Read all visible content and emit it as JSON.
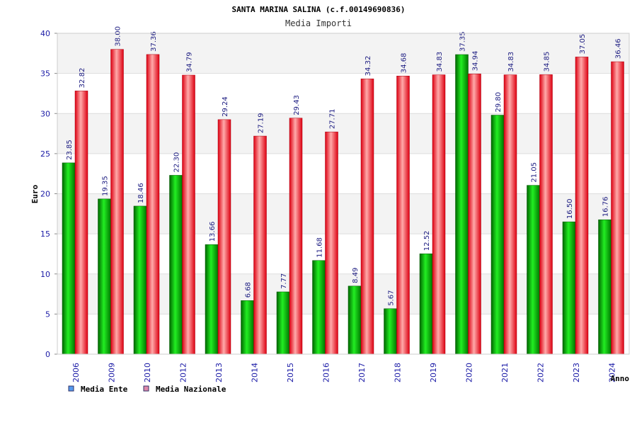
{
  "chart_data": {
    "type": "bar",
    "title": "SANTA MARINA SALINA (c.f.00149690836)",
    "subtitle": "Media Importi",
    "xlabel": "Anno",
    "ylabel": "Euro",
    "ylim": [
      0,
      40
    ],
    "yticks": [
      0,
      5,
      10,
      15,
      20,
      25,
      30,
      35,
      40
    ],
    "grid": true,
    "legend": "bottom-left",
    "categories": [
      "2006",
      "2009",
      "2010",
      "2012",
      "2013",
      "2014",
      "2015",
      "2016",
      "2017",
      "2018",
      "2019",
      "2020",
      "2021",
      "2022",
      "2023",
      "2024"
    ],
    "series": [
      {
        "name": "Media Ente",
        "legend_color": "#5599ee",
        "bar_color": "#00aa00",
        "values": [
          23.85,
          19.35,
          18.46,
          22.3,
          13.66,
          6.68,
          7.77,
          11.68,
          8.49,
          5.67,
          12.52,
          37.35,
          29.8,
          21.05,
          16.5,
          16.76
        ],
        "labels": [
          "23.85",
          "19.35",
          "18.46",
          "22.30",
          "13.66",
          "6.68",
          "7.77",
          "11.68",
          "8.49",
          "5.67",
          "12.52",
          "37.35",
          "29.80",
          "21.05",
          "16.50",
          "16.76"
        ]
      },
      {
        "name": "Media Nazionale",
        "legend_color": "#dd88aa",
        "bar_color": "#ee1122",
        "values": [
          32.82,
          38.0,
          37.36,
          34.79,
          29.24,
          27.19,
          29.43,
          27.71,
          34.32,
          34.68,
          34.83,
          34.94,
          34.83,
          34.85,
          37.05,
          36.46
        ],
        "labels": [
          "32.82",
          "38.00",
          "37.36",
          "34.79",
          "29.24",
          "27.19",
          "29.43",
          "27.71",
          "34.32",
          "34.68",
          "34.83",
          "34.94",
          "34.83",
          "34.85",
          "37.05",
          "36.46"
        ]
      }
    ]
  }
}
